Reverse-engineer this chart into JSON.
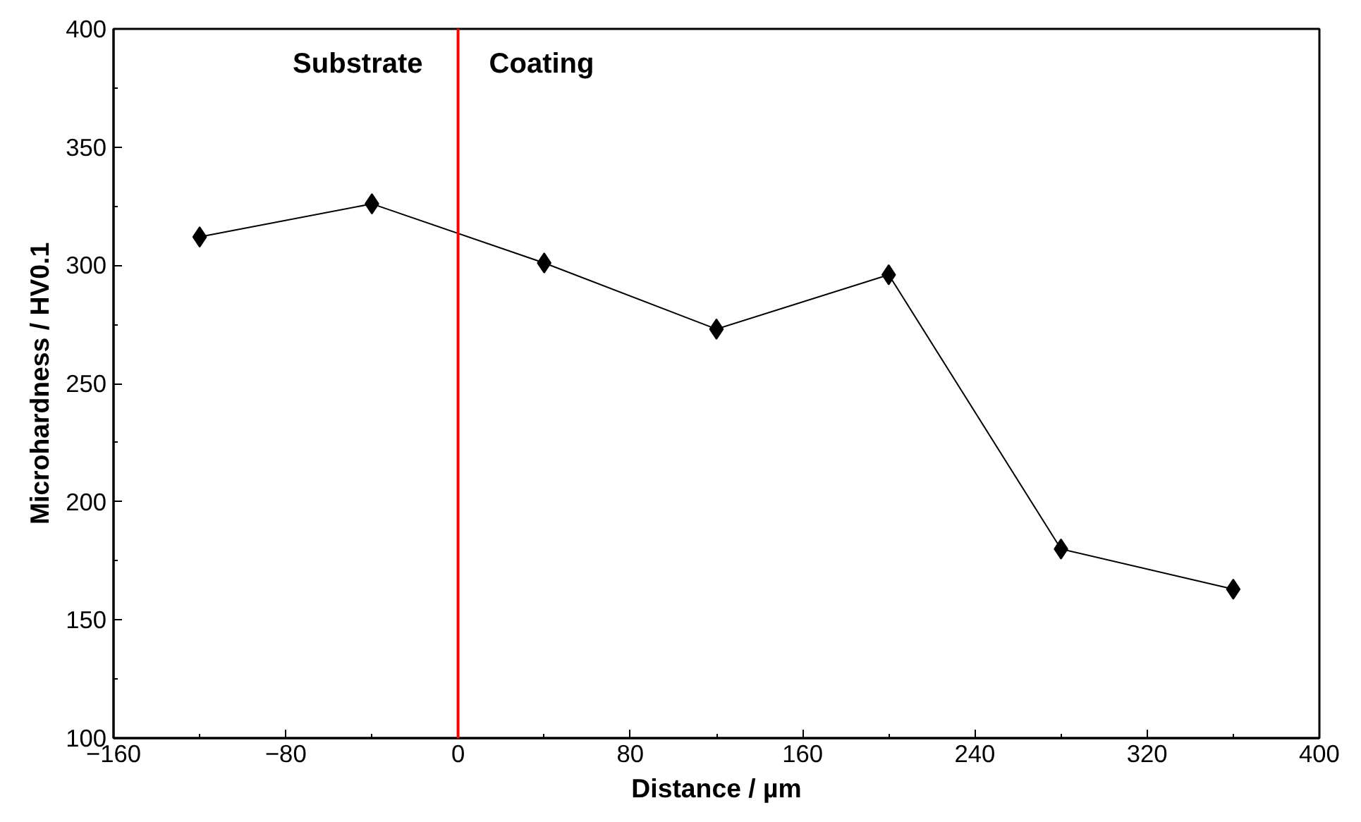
{
  "chart_data": {
    "type": "line",
    "xlabel": "Distance / µm",
    "ylabel": "Microhardness / HV0.1",
    "x": [
      -120,
      -40,
      40,
      120,
      200,
      280,
      360
    ],
    "series": [
      {
        "color": "#000000",
        "values": [
          312,
          326,
          301,
          273,
          296,
          180,
          163
        ]
      }
    ],
    "marker": "diamond",
    "line_style": "solid",
    "xlim": [
      -160,
      400
    ],
    "xticks": [
      -160,
      -80,
      0,
      80,
      160,
      240,
      320,
      400
    ],
    "ylim": [
      100,
      400
    ],
    "yticks": [
      100,
      150,
      200,
      250,
      300,
      350,
      400
    ],
    "grid": false,
    "ref_lines": [
      {
        "axis": "x",
        "value": 0,
        "color": "#ff0000",
        "line_style": "solid"
      }
    ],
    "annotations": [
      "Substrate",
      "Coating"
    ]
  }
}
